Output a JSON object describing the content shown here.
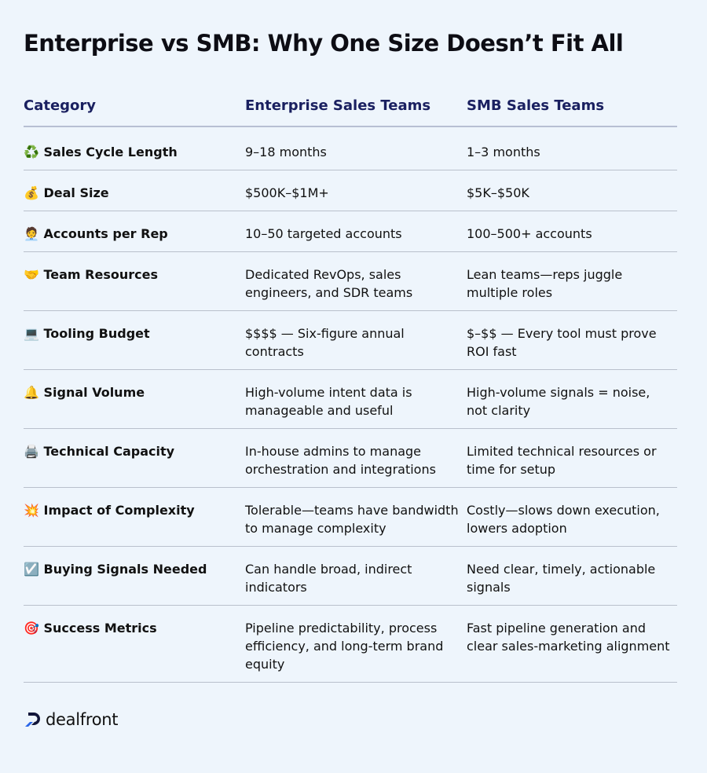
{
  "title": "Enterprise vs SMB: Why One Size Doesn’t Fit All",
  "table": {
    "header": [
      "Category",
      "Enterprise Sales Teams",
      "SMB Sales Teams"
    ],
    "rows": [
      [
        "♻️ Sales Cycle Length",
        "9–18 months",
        "1–3 months"
      ],
      [
        "💰 Deal Size",
        "$500K–$1M+",
        "$5K–$50K"
      ],
      [
        "🧑‍💼 Accounts per Rep",
        "10–50 targeted accounts",
        "100–500+ accounts"
      ],
      [
        "🤝 Team Resources",
        "Dedicated RevOps, sales engineers, and SDR teams",
        "Lean teams—reps juggle multiple roles"
      ],
      [
        "💻 Tooling Budget",
        "$$$$ — Six-figure annual contracts",
        "$–$$ — Every tool must prove ROI fast"
      ],
      [
        "🔔 Signal Volume",
        "High-volume intent data is manageable and useful",
        "High-volume signals = noise, not clarity"
      ],
      [
        "🖨️ Technical Capacity",
        "In-house admins to manage orchestration and integrations",
        "Limited technical resources or time for setup"
      ],
      [
        "💥 Impact of Complexity",
        "Tolerable—teams have bandwidth to manage complexity",
        "Costly—slows down execution, lowers adoption"
      ],
      [
        "☑️ Buying Signals Needed",
        "Can handle broad, indirect indicators",
        "Need clear, timely, actionable signals"
      ],
      [
        "🎯 Success Metrics",
        "Pipeline predictability, process efficiency, and long-term brand equity",
        "Fast pipeline generation and clear sales-marketing alignment"
      ]
    ]
  },
  "footer": {
    "logo": "dealfront"
  }
}
